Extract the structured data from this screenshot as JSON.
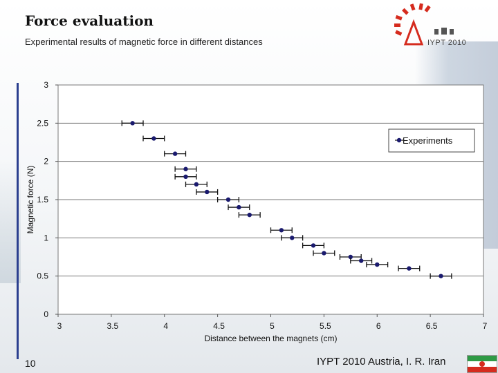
{
  "slide": {
    "title": "Force evaluation",
    "subtitle": "Experimental results of magnetic force in different distances",
    "number": "10",
    "footer": "IYPT 2010 Austria, I. R. Iran",
    "logo_text": "IYPT 2010",
    "accent_color": "#2b3f8f"
  },
  "chart_data": {
    "type": "scatter",
    "xlabel": "Distance between the magnets (cm)",
    "ylabel": "Magnetic force (N)",
    "xlim": [
      3,
      7
    ],
    "ylim": [
      0,
      3
    ],
    "x_ticks": [
      "3",
      "3.5",
      "4",
      "4.5",
      "5",
      "5.5",
      "6",
      "6.5",
      "7"
    ],
    "y_ticks": [
      "0",
      "0.5",
      "1",
      "1.5",
      "2",
      "2.5",
      "3"
    ],
    "grid": true,
    "legend_position": "top-right",
    "marker_color": "#1a1a6e",
    "x_error": 0.1,
    "series": [
      {
        "name": "Experiments",
        "points": [
          [
            3.7,
            2.5
          ],
          [
            3.9,
            2.3
          ],
          [
            4.1,
            2.1
          ],
          [
            4.2,
            1.9
          ],
          [
            4.2,
            1.8
          ],
          [
            4.3,
            1.7
          ],
          [
            4.4,
            1.6
          ],
          [
            4.6,
            1.5
          ],
          [
            4.7,
            1.4
          ],
          [
            4.8,
            1.3
          ],
          [
            5.1,
            1.1
          ],
          [
            5.2,
            1.0
          ],
          [
            5.4,
            0.9
          ],
          [
            5.5,
            0.8
          ],
          [
            5.75,
            0.75
          ],
          [
            5.85,
            0.7
          ],
          [
            6.0,
            0.65
          ],
          [
            6.3,
            0.6
          ],
          [
            6.6,
            0.5
          ]
        ]
      }
    ]
  }
}
